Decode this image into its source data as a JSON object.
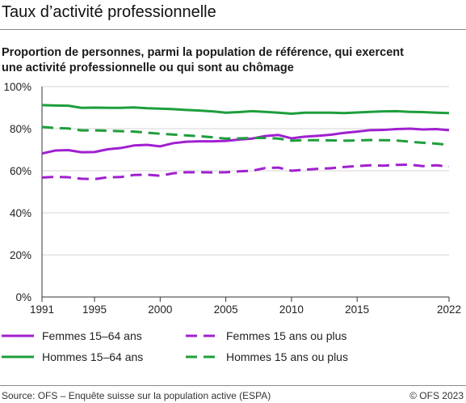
{
  "header": {
    "title": "Taux d’activité professionnelle",
    "subtitle_line1": "Proportion de personnes, parmi la population de référence, qui exercent",
    "subtitle_line2": "une activité professionnelle ou qui sont au chômage"
  },
  "footer": {
    "source": "Source: OFS – Enquête suisse sur la population active (ESPA)",
    "copyright": "© OFS 2023"
  },
  "chart_data": {
    "type": "line",
    "xlim": [
      1991,
      2022
    ],
    "ylim": [
      0,
      100
    ],
    "x_ticks": [
      1991,
      1995,
      2000,
      2005,
      2010,
      2015,
      2022
    ],
    "x_tick_labels": [
      "1991",
      "1995",
      "2000",
      "2005",
      "2010",
      "2015",
      "2022"
    ],
    "y_ticks": [
      0,
      20,
      40,
      60,
      80,
      100
    ],
    "y_tick_labels": [
      "0%",
      "20%",
      "40%",
      "60%",
      "80%",
      "100%"
    ],
    "grid": true,
    "legend_position": "bottom",
    "x": [
      1991,
      1992,
      1993,
      1994,
      1995,
      1996,
      1997,
      1998,
      1999,
      2000,
      2001,
      2002,
      2003,
      2004,
      2005,
      2006,
      2007,
      2008,
      2009,
      2010,
      2011,
      2012,
      2013,
      2014,
      2015,
      2016,
      2017,
      2018,
      2019,
      2020,
      2021,
      2022
    ],
    "series": [
      {
        "name": "Femmes 15–64 ans",
        "color": "#a020d0",
        "dash": "solid",
        "values": [
          68.2,
          69.6,
          69.8,
          68.8,
          68.9,
          70.2,
          70.8,
          72.0,
          72.3,
          71.6,
          73.1,
          73.8,
          74.0,
          74.0,
          74.2,
          74.8,
          75.3,
          76.5,
          77.0,
          75.4,
          76.2,
          76.6,
          77.1,
          78.0,
          78.6,
          79.3,
          79.4,
          79.8,
          80.0,
          79.6,
          79.8,
          79.3
        ]
      },
      {
        "name": "Femmes 15 ans ou plus",
        "color": "#a020d0",
        "dash": "dashed",
        "values": [
          56.8,
          57.1,
          56.9,
          56.2,
          56.0,
          56.9,
          57.0,
          58.0,
          58.1,
          57.6,
          58.8,
          59.3,
          59.3,
          59.2,
          59.3,
          59.7,
          60.0,
          61.3,
          61.5,
          60.0,
          60.5,
          60.9,
          61.2,
          61.8,
          62.2,
          62.6,
          62.4,
          62.8,
          62.9,
          62.2,
          62.6,
          62.0
        ]
      },
      {
        "name": "Hommes 15–64 ans",
        "color": "#1e9e3c",
        "dash": "solid",
        "values": [
          91.2,
          91.0,
          90.9,
          89.9,
          90.0,
          89.9,
          89.9,
          90.1,
          89.7,
          89.5,
          89.3,
          88.9,
          88.6,
          88.2,
          87.6,
          87.9,
          88.3,
          88.0,
          87.6,
          87.1,
          87.6,
          87.6,
          87.6,
          87.4,
          87.7,
          88.0,
          88.2,
          88.3,
          88.0,
          87.9,
          87.6,
          87.4
        ]
      },
      {
        "name": "Hommes 15 ans ou plus",
        "color": "#1e9e3c",
        "dash": "dashed",
        "values": [
          80.8,
          80.3,
          80.1,
          79.2,
          79.2,
          79.0,
          78.8,
          78.6,
          78.1,
          77.6,
          77.2,
          76.8,
          76.4,
          75.9,
          75.3,
          75.4,
          75.6,
          75.6,
          75.3,
          74.3,
          74.5,
          74.5,
          74.4,
          74.3,
          74.4,
          74.6,
          74.5,
          74.4,
          73.8,
          73.3,
          72.9,
          72.3
        ]
      }
    ]
  }
}
